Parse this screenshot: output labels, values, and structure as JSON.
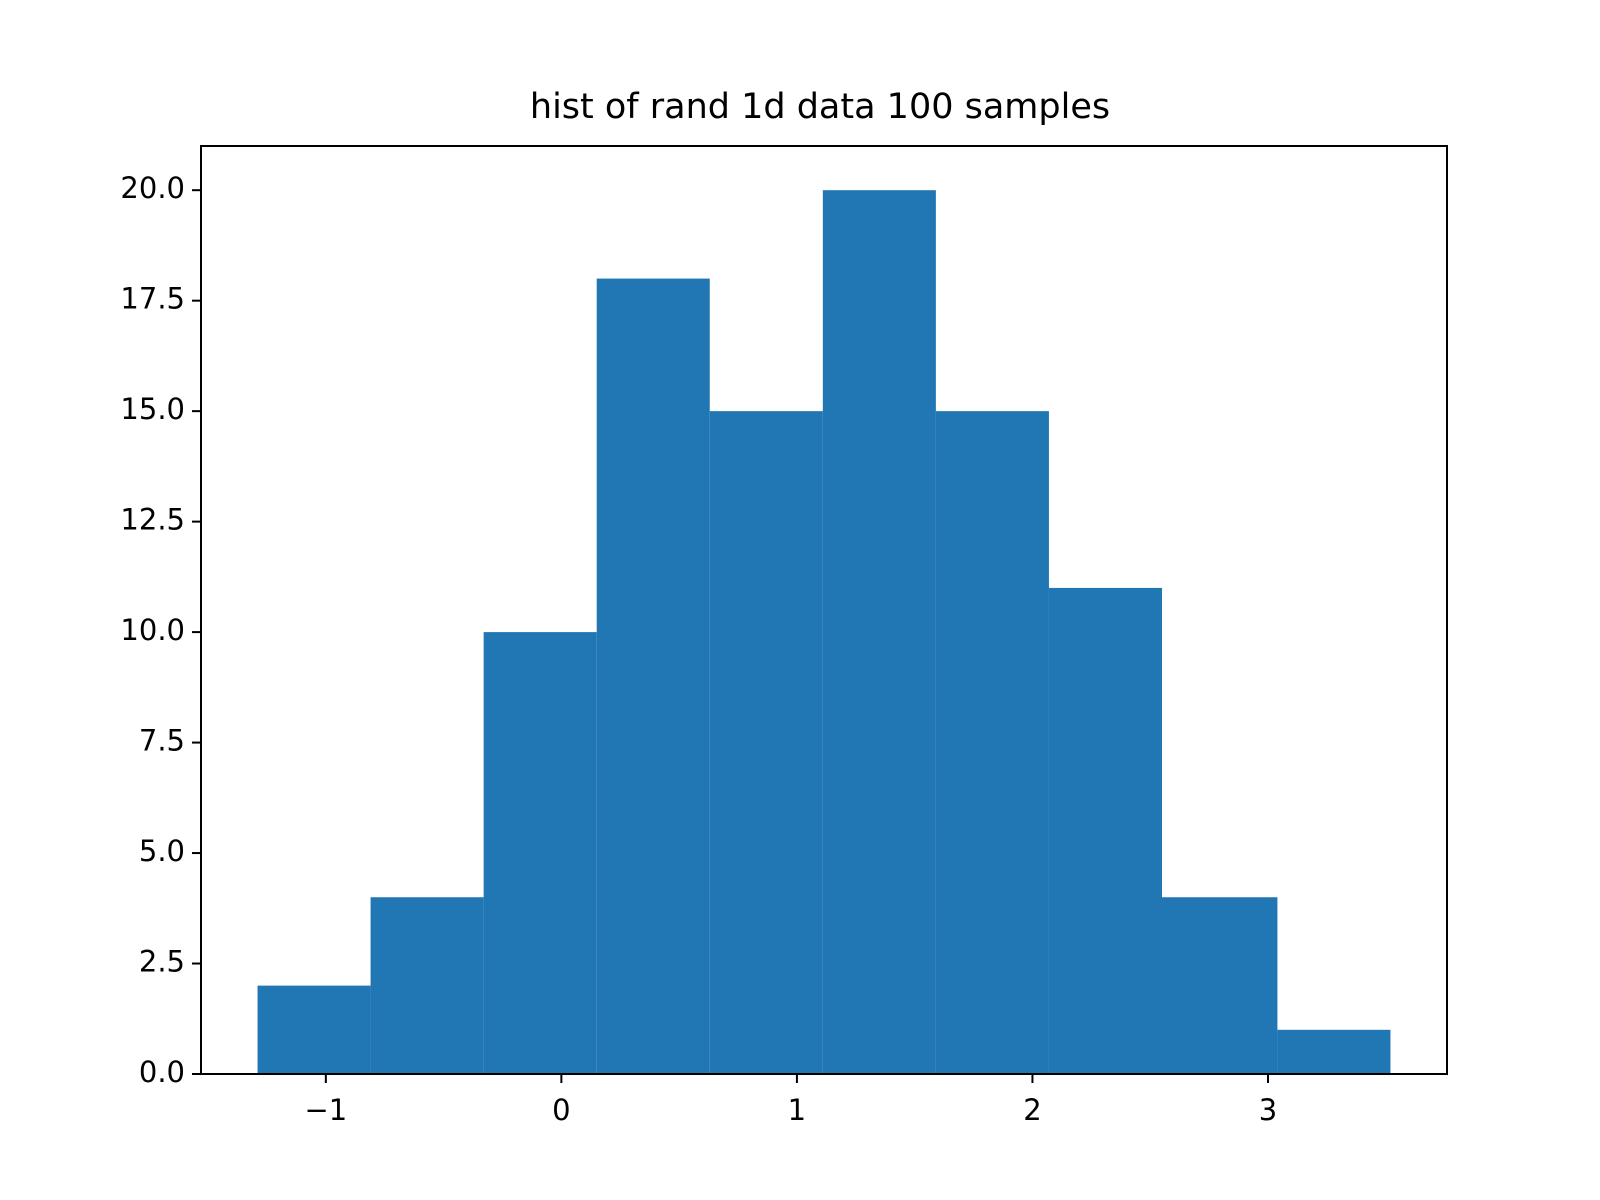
{
  "chart_data": {
    "type": "histogram",
    "title": "hist of rand 1d data 100 samples",
    "bins": [
      -1.29,
      -0.81,
      -0.33,
      0.15,
      0.63,
      1.11,
      1.59,
      2.07,
      2.55,
      3.04,
      3.52
    ],
    "values": [
      2,
      4,
      10,
      18,
      15,
      20,
      15,
      11,
      4,
      1
    ],
    "color": "#2077b4",
    "xlim": [
      -1.53,
      3.76
    ],
    "ylim": [
      0,
      21
    ],
    "xticks": [
      {
        "value": -1,
        "label": "−1"
      },
      0,
      1,
      2,
      3
    ],
    "yticks": [
      {
        "value": 0,
        "label": "0.0"
      },
      {
        "value": 2.5,
        "label": "2.5"
      },
      {
        "value": 5,
        "label": "5.0"
      },
      {
        "value": 7.5,
        "label": "7.5"
      },
      {
        "value": 10,
        "label": "10.0"
      },
      {
        "value": 12.5,
        "label": "12.5"
      },
      {
        "value": 15,
        "label": "15.0"
      },
      {
        "value": 17.5,
        "label": "17.5"
      },
      {
        "value": 20,
        "label": "20.0"
      }
    ],
    "grid": false
  }
}
